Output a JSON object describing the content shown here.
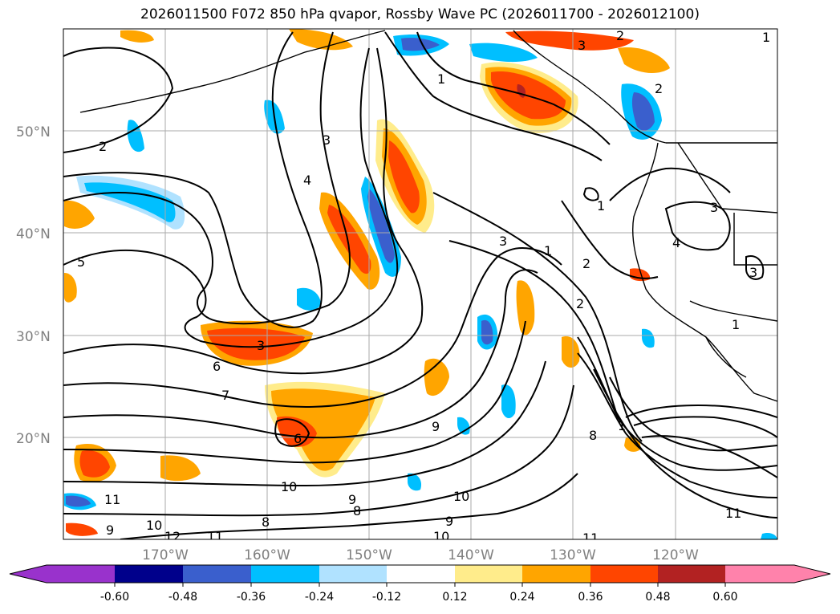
{
  "title": "2026011500 F072 850 hPa qvapor, Rossby Wave PC (2026011700 - 2026012100)",
  "map": {
    "lon_range": [
      -180,
      -110
    ],
    "lat_range": [
      10,
      60
    ],
    "lat_ticks": [
      {
        "value": 50,
        "label": "50°N"
      },
      {
        "value": 40,
        "label": "40°N"
      },
      {
        "value": 30,
        "label": "30°N"
      },
      {
        "value": 20,
        "label": "20°N"
      }
    ],
    "lon_ticks": [
      {
        "value": -170,
        "label": "170°W"
      },
      {
        "value": -160,
        "label": "160°W"
      },
      {
        "value": -150,
        "label": "150°W"
      },
      {
        "value": -140,
        "label": "140°W"
      },
      {
        "value": -130,
        "label": "130°W"
      },
      {
        "value": -120,
        "label": "120°W"
      }
    ],
    "contour_labels": [
      "2",
      "3",
      "4",
      "5",
      "3",
      "6",
      "7",
      "9",
      "10",
      "11",
      "9",
      "10",
      "8",
      "9",
      "10",
      "11",
      "1",
      "2",
      "3",
      "1",
      "2",
      "1",
      "3",
      "2",
      "1",
      "3",
      "4",
      "3",
      "8",
      "1",
      "2",
      "1",
      "6",
      "9",
      "12",
      "11",
      "8",
      "10",
      "11"
    ]
  },
  "colorbar": {
    "colors": [
      "#9932cc",
      "#00008b",
      "#3a5fcd",
      "#00bfff",
      "#b0e2ff",
      "#ffffff",
      "#ffec8b",
      "#ffa500",
      "#ff4500",
      "#b22222",
      "#ff82ab"
    ],
    "ticks": [
      "-0.60",
      "-0.48",
      "-0.36",
      "-0.24",
      "-0.12",
      "0.12",
      "0.24",
      "0.36",
      "0.48",
      "0.60"
    ]
  }
}
